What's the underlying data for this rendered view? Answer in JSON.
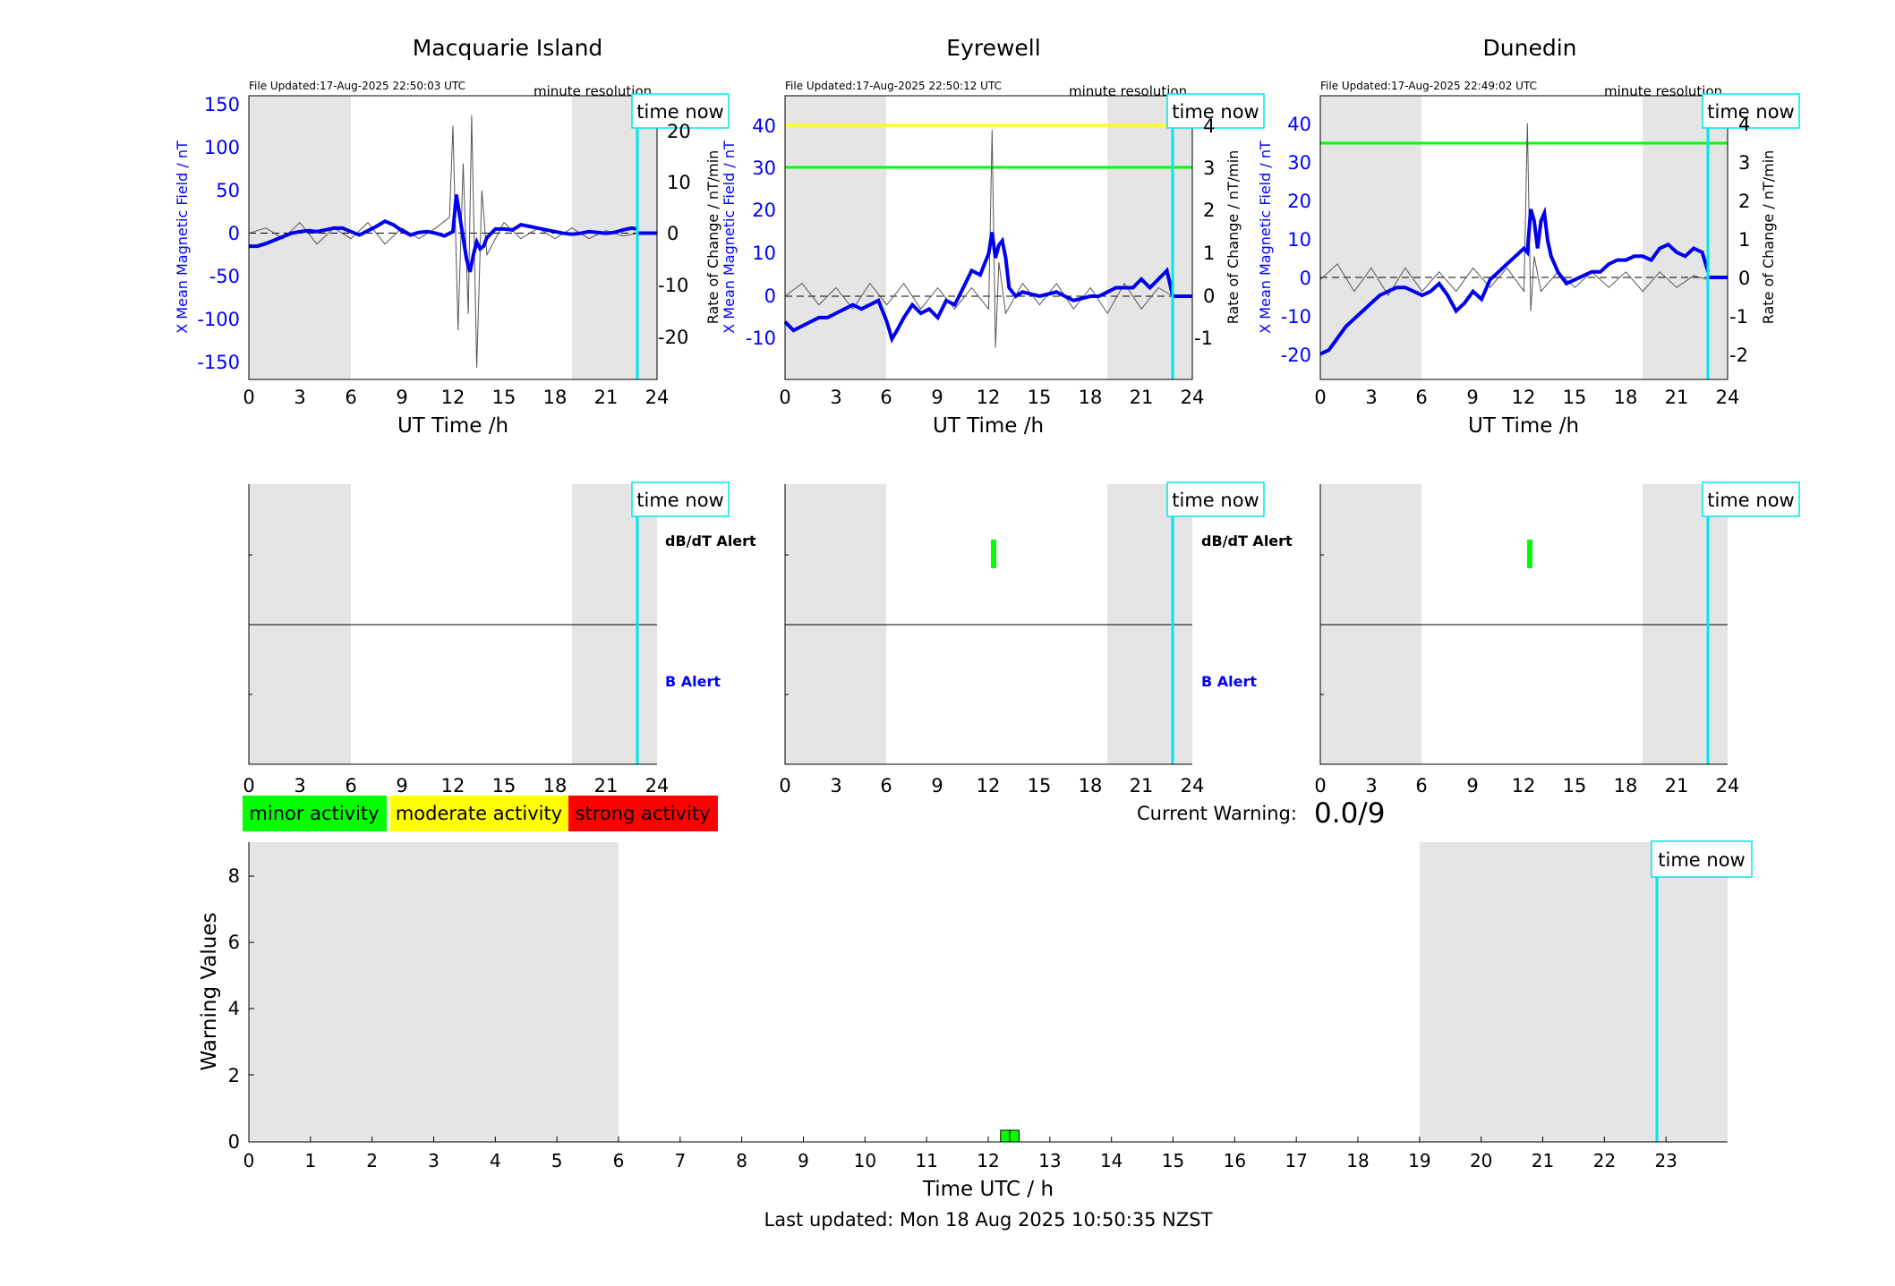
{
  "stations": [
    {
      "name": "Macquarie Island",
      "file_updated": "File Updated:17-Aug-2025 22:50:03 UTC",
      "resolution": "minute resolution",
      "time_now_label": "time now",
      "left_ylabel": "X Mean Magnetic Field / nT",
      "right_ylabel": "Rate of Change / nT/min",
      "left_ticks": [
        "150",
        "100",
        "50",
        "0",
        "-50",
        "-100",
        "-150"
      ],
      "right_ticks": [
        "20",
        "10",
        "0",
        "-10",
        "-20"
      ],
      "x_ticks": [
        "0",
        "3",
        "6",
        "9",
        "12",
        "15",
        "18",
        "21",
        "24"
      ],
      "xlabel": "UT Time /h",
      "alert_dbdt_label": "dB/dT Alert",
      "alert_b_label": "B Alert",
      "alert_x_ticks": [
        "0",
        "3",
        "6",
        "9",
        "12",
        "15",
        "18",
        "21",
        "24"
      ]
    },
    {
      "name": "Eyrewell",
      "file_updated": "File Updated:17-Aug-2025 22:50:12 UTC",
      "resolution": "minute resolution",
      "time_now_label": "time now",
      "left_ylabel": "X Mean Magnetic Field / nT",
      "right_ylabel": "Rate of Change / nT/min",
      "left_ticks": [
        "40",
        "30",
        "20",
        "10",
        "0",
        "-10"
      ],
      "right_ticks": [
        "4",
        "3",
        "2",
        "1",
        "0",
        "-1"
      ],
      "x_ticks": [
        "0",
        "3",
        "6",
        "9",
        "12",
        "15",
        "18",
        "21",
        "24"
      ],
      "xlabel": "UT Time /h",
      "alert_dbdt_label": "dB/dT Alert",
      "alert_b_label": "B Alert",
      "alert_x_ticks": [
        "0",
        "3",
        "6",
        "9",
        "12",
        "15",
        "18",
        "21",
        "24"
      ]
    },
    {
      "name": "Dunedin",
      "file_updated": "File Updated:17-Aug-2025 22:49:02 UTC",
      "resolution": "minute resolution",
      "time_now_label": "time now",
      "left_ylabel": "X Mean Magnetic Field / nT",
      "right_ylabel": "Rate of Change / nT/min",
      "left_ticks": [
        "40",
        "30",
        "20",
        "10",
        "0",
        "-10",
        "-20"
      ],
      "right_ticks": [
        "4",
        "3",
        "2",
        "1",
        "0",
        "-1",
        "-2"
      ],
      "x_ticks": [
        "0",
        "3",
        "6",
        "9",
        "12",
        "15",
        "18",
        "21",
        "24"
      ],
      "xlabel": "UT Time /h",
      "alert_dbdt_label": "",
      "alert_b_label": "",
      "alert_x_ticks": [
        "0",
        "3",
        "6",
        "9",
        "12",
        "15",
        "18",
        "21",
        "24"
      ]
    }
  ],
  "legend": {
    "minor": "minor activity",
    "moderate": "moderate activity",
    "strong": "strong activity"
  },
  "current_warning_label": "Current Warning:",
  "current_warning_value": "0.0/9",
  "warning_chart": {
    "ylabel": "Warning Values",
    "xlabel": "Time UTC / h",
    "y_ticks": [
      "0",
      "2",
      "4",
      "6",
      "8"
    ],
    "x_ticks": [
      "0",
      "1",
      "2",
      "3",
      "4",
      "5",
      "6",
      "7",
      "8",
      "9",
      "10",
      "11",
      "12",
      "13",
      "14",
      "15",
      "16",
      "17",
      "18",
      "19",
      "20",
      "21",
      "22",
      "23"
    ],
    "time_now_label": "time now"
  },
  "last_updated": "Last updated: Mon 18 Aug 2025 10:50:35 NZST",
  "colors": {
    "night_shade": "#e5e5e5",
    "field_line": "#0000ee",
    "rate_line": "#555555",
    "time_now": "#00e5ee",
    "minor": "#00ff00",
    "moderate": "#ffff00",
    "strong": "#ff0000",
    "axis_blue": "#0000ff"
  },
  "chart_data": [
    {
      "type": "line",
      "title": "Macquarie Island",
      "xlabel": "UT Time /h",
      "ylabel": "X Mean Magnetic Field / nT",
      "y2label": "Rate of Change / nT/min",
      "xlim": [
        0,
        24
      ],
      "ylim": [
        -170,
        160
      ],
      "y2lim": [
        -27.2,
        25.6
      ],
      "night_shading": [
        [
          0,
          6
        ],
        [
          19,
          24
        ]
      ],
      "time_now": 22.85,
      "series": [
        {
          "name": "X Mean Magnetic Field",
          "axis": "left",
          "x": [
            0,
            0.5,
            1,
            1.5,
            2,
            2.5,
            3,
            3.5,
            4,
            4.5,
            5,
            5.5,
            6,
            6.5,
            7,
            7.5,
            8,
            8.5,
            9,
            9.5,
            10,
            10.5,
            11,
            11.5,
            12,
            12.2,
            12.4,
            12.6,
            12.8,
            13,
            13.2,
            13.4,
            13.6,
            13.8,
            14,
            14.5,
            15,
            15.5,
            16,
            16.5,
            17,
            17.5,
            18,
            18.5,
            19,
            19.5,
            20,
            20.5,
            21,
            21.5,
            22,
            22.5,
            22.85
          ],
          "y": [
            -15,
            -15,
            -12,
            -8,
            -4,
            0,
            2,
            3,
            2,
            4,
            6,
            6,
            2,
            -2,
            3,
            8,
            14,
            10,
            3,
            -2,
            1,
            2,
            0,
            -3,
            2,
            45,
            20,
            -5,
            -30,
            -45,
            -25,
            -10,
            -18,
            -15,
            -5,
            5,
            5,
            4,
            10,
            8,
            6,
            4,
            2,
            0,
            -1,
            0,
            2,
            1,
            0,
            1,
            4,
            6,
            5
          ]
        },
        {
          "name": "Rate of Change",
          "axis": "right",
          "x": [
            0,
            1,
            2,
            3,
            4,
            5,
            6,
            7,
            8,
            9,
            10,
            11,
            11.8,
            12,
            12.3,
            12.6,
            12.9,
            13.1,
            13.4,
            13.7,
            14,
            15,
            16,
            17,
            18,
            19,
            20,
            21,
            22,
            22.85
          ],
          "y": [
            0,
            1,
            -1,
            2,
            -2,
            1,
            -1,
            2,
            -2,
            1,
            -1,
            1,
            3,
            20,
            -18,
            13,
            -15,
            22,
            -25,
            8,
            -4,
            2,
            -1,
            1,
            -1,
            1,
            -1,
            0.5,
            -0.5,
            0
          ]
        }
      ]
    },
    {
      "type": "line",
      "title": "Eyrewell",
      "xlabel": "UT Time /h",
      "ylabel": "X Mean Magnetic Field / nT",
      "y2label": "Rate of Change / nT/min",
      "xlim": [
        0,
        24
      ],
      "ylim": [
        -19.5,
        47
      ],
      "y2lim": [
        -1.95,
        4.7
      ],
      "night_shading": [
        [
          0,
          6
        ],
        [
          19,
          24
        ]
      ],
      "time_now": 22.85,
      "thresholds": [
        {
          "name": "moderate",
          "axis": "right",
          "value": 4,
          "color": "#ffff00"
        },
        {
          "name": "minor",
          "axis": "right",
          "value": 3,
          "color": "#00ff00"
        }
      ],
      "series": [
        {
          "name": "X Mean Magnetic Field",
          "axis": "left",
          "x": [
            0,
            0.5,
            1,
            1.5,
            2,
            2.5,
            3,
            3.5,
            4,
            4.5,
            5,
            5.5,
            6,
            6.3,
            6.6,
            7,
            7.5,
            8,
            8.5,
            9,
            9.5,
            10,
            10.5,
            11,
            11.5,
            12,
            12.2,
            12.4,
            12.6,
            12.8,
            13,
            13.2,
            13.4,
            13.6,
            14,
            15,
            16,
            17,
            18,
            18.5,
            19,
            19.5,
            20,
            20.5,
            21,
            21.5,
            22,
            22.5,
            22.85
          ],
          "y": [
            -6,
            -8,
            -7,
            -6,
            -5,
            -5,
            -4,
            -3,
            -2,
            -3,
            -2,
            -1,
            -6,
            -10,
            -8,
            -5,
            -2,
            -4,
            -3,
            -5,
            -1,
            -2,
            2,
            6,
            5,
            10,
            15,
            9,
            12,
            13,
            9,
            2,
            1,
            0,
            1,
            0,
            1,
            -1,
            0,
            0,
            1,
            2,
            2,
            2,
            4,
            2,
            4,
            6,
            0
          ]
        },
        {
          "name": "Rate of Change",
          "axis": "right",
          "x": [
            0,
            1,
            2,
            3,
            4,
            5,
            6,
            7,
            8,
            9,
            10,
            11,
            12,
            12.2,
            12.4,
            12.6,
            13,
            14,
            15,
            16,
            17,
            18,
            19,
            20,
            21,
            22,
            22.85
          ],
          "y": [
            0,
            0.3,
            -0.2,
            0.2,
            -0.3,
            0.3,
            -0.2,
            0.3,
            -0.3,
            0.2,
            -0.3,
            0.2,
            -0.3,
            3.9,
            -1.2,
            0.8,
            -0.4,
            0.3,
            -0.2,
            0.3,
            -0.3,
            0.2,
            -0.4,
            0.3,
            -0.3,
            0.2,
            0
          ]
        }
      ]
    },
    {
      "type": "line",
      "title": "Dunedin",
      "xlabel": "UT Time /h",
      "ylabel": "X Mean Magnetic Field / nT",
      "y2label": "Rate of Change / nT/min",
      "xlim": [
        0,
        24
      ],
      "ylim": [
        -25.5,
        47
      ],
      "y2lim": [
        -2.55,
        4.7
      ],
      "night_shading": [
        [
          0,
          6
        ],
        [
          19,
          24
        ]
      ],
      "time_now": 22.85,
      "thresholds": [
        {
          "name": "minor",
          "axis": "right",
          "value": 3.5,
          "color": "#00ff00"
        }
      ],
      "series": [
        {
          "name": "X Mean Magnetic Field",
          "axis": "left",
          "x": [
            0,
            0.5,
            1,
            1.5,
            2,
            2.5,
            3,
            3.5,
            4,
            4.5,
            5,
            5.5,
            6,
            6.5,
            7,
            7.5,
            8,
            8.5,
            9,
            9.5,
            10,
            10.5,
            11,
            11.5,
            12,
            12.2,
            12.4,
            12.6,
            12.8,
            13,
            13.2,
            13.4,
            13.6,
            14,
            14.5,
            15,
            15.5,
            16,
            16.5,
            17,
            17.5,
            18,
            18.5,
            19,
            19.5,
            20,
            20.5,
            21,
            21.5,
            22,
            22.5,
            22.85
          ],
          "y": [
            -19,
            -18,
            -15,
            -12,
            -10,
            -8,
            -6,
            -4,
            -3,
            -2,
            -2,
            -3,
            -4,
            -3,
            -1,
            -4,
            -8,
            -6,
            -3,
            -5,
            0,
            2,
            4,
            6,
            8,
            7,
            18,
            15,
            8,
            15,
            17,
            10,
            6,
            2,
            -1,
            0,
            1,
            2,
            2,
            4,
            5,
            5,
            6,
            6,
            5,
            8,
            9,
            7,
            6,
            8,
            7,
            2
          ]
        },
        {
          "name": "Rate of Change",
          "axis": "right",
          "x": [
            0,
            1,
            2,
            3,
            4,
            5,
            6,
            7,
            8,
            9,
            10,
            11,
            12,
            12.2,
            12.4,
            12.6,
            13,
            14,
            15,
            16,
            17,
            18,
            19,
            20,
            21,
            22,
            22.85
          ],
          "y": [
            0,
            0.4,
            -0.3,
            0.3,
            -0.4,
            0.3,
            -0.3,
            0.2,
            -0.3,
            0.3,
            -0.2,
            0.3,
            -0.3,
            4,
            -0.8,
            0.6,
            -0.3,
            0.2,
            -0.2,
            0.2,
            -0.2,
            0.2,
            -0.3,
            0.2,
            -0.2,
            0.1,
            0
          ]
        }
      ]
    },
    {
      "type": "bar",
      "title": "",
      "xlabel": "Time UTC / h",
      "ylabel": "Warning Values",
      "xlim": [
        0,
        24
      ],
      "ylim": [
        0,
        9
      ],
      "night_shading": [
        [
          0,
          6
        ],
        [
          19,
          24
        ]
      ],
      "time_now": 22.85,
      "bars": [
        {
          "start": 12.2,
          "end": 12.35,
          "value": 0.35,
          "level": "minor"
        },
        {
          "start": 12.35,
          "end": 12.5,
          "value": 0.35,
          "level": "minor"
        }
      ],
      "current_warning": "0.0/9"
    }
  ]
}
